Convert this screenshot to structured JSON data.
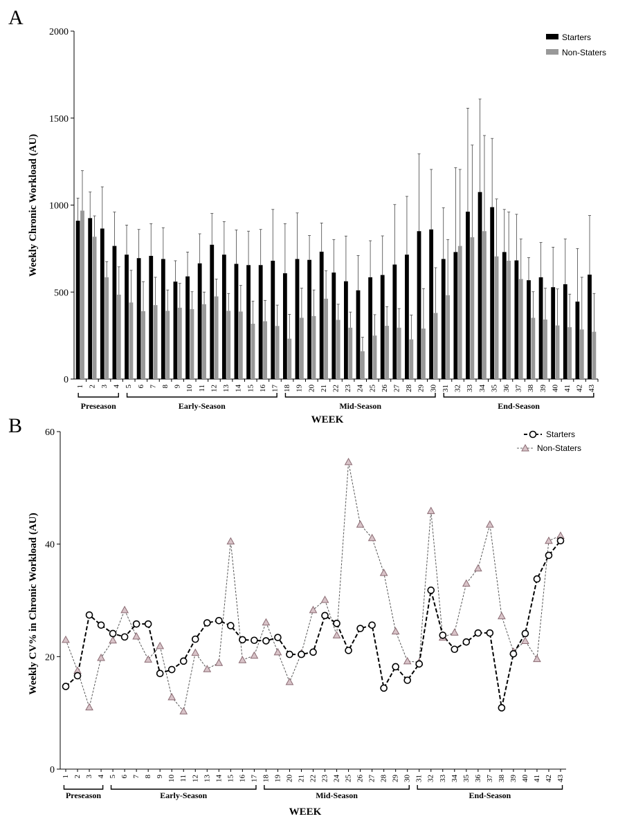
{
  "colors": {
    "starters": "#000000",
    "non_starters": "#999999",
    "triangle_fill": "#d8c3c8",
    "triangle_stroke": "#8a6a72"
  },
  "chart_data": [
    {
      "panel": "A",
      "type": "bar",
      "ylabel": "Weekly Chronic Workload (AU)",
      "xlabel": "WEEK",
      "ylim": [
        0,
        2000
      ],
      "yticks": [
        0,
        500,
        1000,
        1500,
        2000
      ],
      "categories": [
        "1",
        "2",
        "3",
        "4",
        "5",
        "6",
        "7",
        "8",
        "9",
        "10",
        "11",
        "12",
        "13",
        "14",
        "15",
        "16",
        "17",
        "18",
        "19",
        "20",
        "21",
        "22",
        "23",
        "24",
        "25",
        "26",
        "27",
        "28",
        "29",
        "30",
        "31",
        "32",
        "33",
        "34",
        "35",
        "36",
        "37",
        "38",
        "39",
        "40",
        "41",
        "42",
        "43"
      ],
      "legend_position": "top-right",
      "series": [
        {
          "name": "Starters",
          "values": [
            910,
            925,
            865,
            765,
            715,
            695,
            708,
            690,
            560,
            590,
            665,
            772,
            715,
            662,
            655,
            655,
            680,
            608,
            690,
            685,
            732,
            612,
            562,
            510,
            585,
            598,
            658,
            715,
            850,
            860,
            690,
            730,
            962,
            1075,
            988,
            730,
            682,
            568,
            585,
            528,
            545,
            445,
            600
          ],
          "errors": [
            130,
            150,
            240,
            195,
            170,
            165,
            185,
            180,
            120,
            140,
            170,
            180,
            190,
            195,
            195,
            205,
            295,
            285,
            265,
            140,
            165,
            190,
            260,
            200,
            210,
            225,
            345,
            335,
            445,
            345,
            295,
            485,
            595,
            535,
            395,
            245,
            265,
            130,
            200,
            230,
            260,
            305,
            340
          ]
        },
        {
          "name": "Non-Staters",
          "values": [
            968,
            818,
            585,
            485,
            440,
            390,
            425,
            392,
            410,
            402,
            430,
            475,
            392,
            388,
            318,
            332,
            305,
            232,
            352,
            362,
            462,
            340,
            295,
            160,
            250,
            306,
            295,
            228,
            290,
            380,
            482,
            765,
            815,
            850,
            705,
            680,
            575,
            352,
            342,
            308,
            298,
            285,
            272
          ],
          "errors": [
            230,
            120,
            90,
            160,
            185,
            170,
            160,
            120,
            140,
            100,
            70,
            100,
            100,
            150,
            130,
            120,
            120,
            140,
            170,
            150,
            160,
            90,
            90,
            80,
            120,
            110,
            110,
            140,
            230,
            260,
            320,
            440,
            530,
            550,
            330,
            280,
            230,
            150,
            180,
            210,
            190,
            300,
            220
          ]
        }
      ],
      "phases": [
        {
          "label": "Preseason",
          "from": 1,
          "to": 4
        },
        {
          "label": "Early-Season",
          "from": 5,
          "to": 17
        },
        {
          "label": "Mid-Season",
          "from": 18,
          "to": 30
        },
        {
          "label": "End-Season",
          "from": 31,
          "to": 43
        }
      ]
    },
    {
      "panel": "B",
      "type": "line",
      "ylabel": "Weekly CV% in Chronic Workload (AU)",
      "xlabel": "WEEK",
      "ylim": [
        0,
        60
      ],
      "yticks": [
        0,
        20,
        40,
        60
      ],
      "x": [
        "1",
        "2",
        "3",
        "4",
        "5",
        "6",
        "7",
        "8",
        "9",
        "10",
        "11",
        "12",
        "13",
        "14",
        "15",
        "16",
        "17",
        "18",
        "19",
        "20",
        "21",
        "22",
        "23",
        "24",
        "25",
        "26",
        "27",
        "28",
        "29",
        "30",
        "31",
        "32",
        "33",
        "34",
        "35",
        "36",
        "37",
        "38",
        "39",
        "40",
        "41",
        "42",
        "43"
      ],
      "legend_position": "top-right",
      "series": [
        {
          "name": "Starters",
          "marker": "circle",
          "values": [
            14.7,
            16.6,
            27.4,
            25.6,
            24.1,
            23.5,
            25.8,
            25.8,
            17.0,
            17.7,
            19.2,
            23.1,
            26.0,
            26.4,
            25.5,
            23.0,
            22.9,
            22.8,
            23.4,
            20.4,
            20.4,
            20.8,
            27.3,
            25.9,
            21.1,
            25.0,
            25.6,
            14.4,
            18.2,
            15.8,
            18.7,
            31.8,
            23.8,
            21.3,
            22.6,
            24.2,
            24.2,
            10.9,
            20.5,
            24.1,
            33.8,
            38.0,
            40.6
          ]
        },
        {
          "name": "Non-Staters",
          "marker": "triangle",
          "values": [
            23.0,
            17.5,
            11.0,
            19.8,
            22.9,
            28.3,
            23.6,
            19.5,
            21.9,
            12.8,
            10.3,
            20.7,
            17.8,
            18.9,
            40.5,
            19.4,
            20.2,
            26.1,
            20.8,
            15.5,
            20.6,
            28.3,
            30.1,
            23.8,
            54.6,
            43.5,
            41.1,
            34.9,
            24.5,
            19.2,
            19.0,
            45.9,
            23.4,
            24.3,
            33.0,
            35.7,
            43.5,
            27.2,
            20.9,
            22.8,
            19.6,
            40.6,
            41.5
          ]
        }
      ],
      "phases": [
        {
          "label": "Preseason",
          "from": 1,
          "to": 4
        },
        {
          "label": "Early-Season",
          "from": 5,
          "to": 17
        },
        {
          "label": "Mid-Season",
          "from": 18,
          "to": 30
        },
        {
          "label": "End-Season",
          "from": 31,
          "to": 43
        }
      ]
    }
  ]
}
